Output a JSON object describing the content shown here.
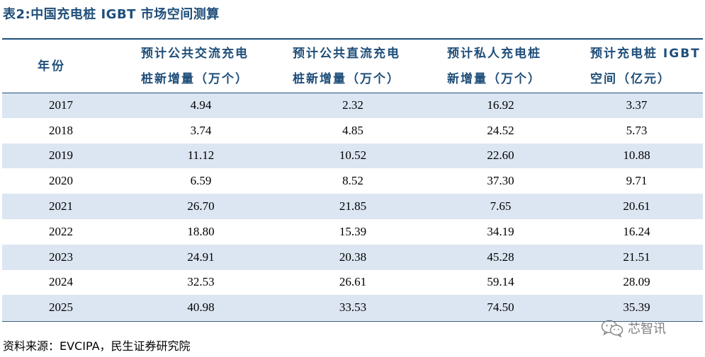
{
  "caption": "表2:中国充电桩 IGBT 市场空间测算",
  "table": {
    "headers": [
      [
        "年份"
      ],
      [
        "预计公共交流充电",
        "桩新增量（万个）"
      ],
      [
        "预计公共直流充电",
        "桩新增量（万个）"
      ],
      [
        "预计私人充电桩",
        "新增量（万个）"
      ],
      [
        "预计充电桩 IGBT",
        "空间（亿元）"
      ]
    ],
    "rows": [
      [
        "2017",
        "4.94",
        "2.32",
        "16.92",
        "3.37"
      ],
      [
        "2018",
        "3.74",
        "4.85",
        "24.52",
        "5.73"
      ],
      [
        "2019",
        "11.12",
        "10.52",
        "22.60",
        "10.88"
      ],
      [
        "2020",
        "6.59",
        "8.52",
        "37.30",
        "9.71"
      ],
      [
        "2021",
        "26.70",
        "21.85",
        "7.65",
        "20.61"
      ],
      [
        "2022",
        "18.80",
        "15.39",
        "34.19",
        "16.24"
      ],
      [
        "2023",
        "24.91",
        "20.38",
        "45.28",
        "21.51"
      ],
      [
        "2024",
        "32.53",
        "26.61",
        "59.14",
        "28.09"
      ],
      [
        "2025",
        "40.98",
        "33.53",
        "74.50",
        "35.39"
      ]
    ]
  },
  "source": "资料来源：EVCIPA，民生证券研究院",
  "watermark": {
    "icon": "wechat-icon",
    "text": "芯智讯"
  }
}
